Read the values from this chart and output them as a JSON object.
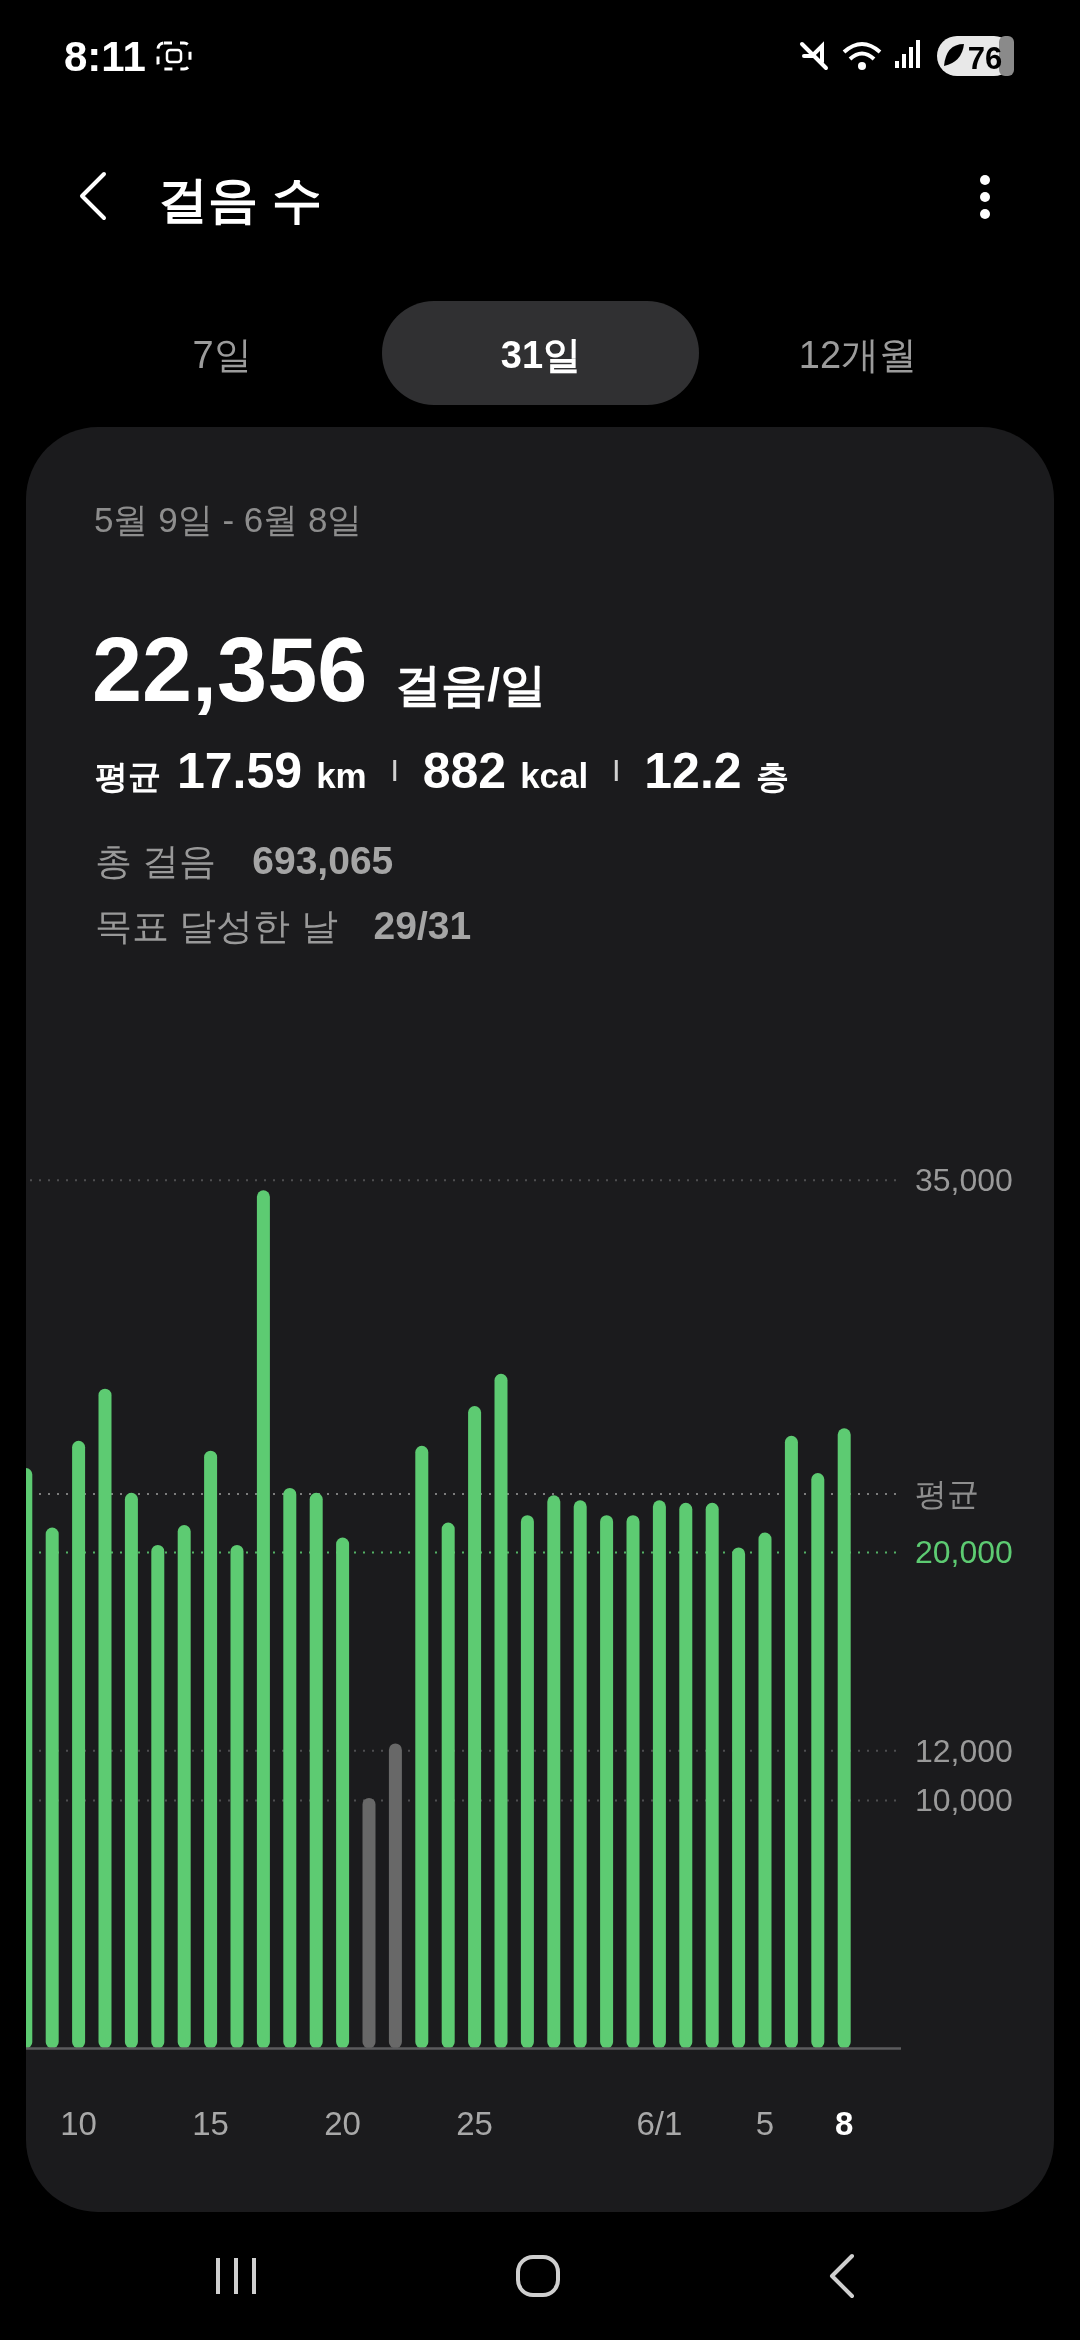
{
  "chart_data": {
    "type": "bar",
    "title": "걸음 수",
    "categories": [
      null,
      null,
      "10",
      null,
      null,
      null,
      null,
      "15",
      null,
      null,
      null,
      null,
      "20",
      null,
      null,
      null,
      null,
      "25",
      null,
      null,
      null,
      null,
      null,
      null,
      "6/1",
      null,
      null,
      null,
      "5",
      null,
      null,
      "8"
    ],
    "values": [
      23400,
      21000,
      24500,
      26600,
      22400,
      20300,
      21100,
      24100,
      20300,
      34600,
      22600,
      22400,
      20600,
      10100,
      12300,
      24300,
      21200,
      25900,
      27200,
      21500,
      22300,
      22100,
      21500,
      21500,
      22100,
      22000,
      22000,
      20200,
      20800,
      24700,
      23200,
      25000
    ],
    "colors": [
      "#5dcb72",
      "#5dcb72",
      "#5dcb72",
      "#5dcb72",
      "#5dcb72",
      "#5dcb72",
      "#5dcb72",
      "#5dcb72",
      "#5dcb72",
      "#5dcb72",
      "#5dcb72",
      "#5dcb72",
      "#5dcb72",
      "#686868",
      "#686868",
      "#5dcb72",
      "#5dcb72",
      "#5dcb72",
      "#5dcb72",
      "#5dcb72",
      "#5dcb72",
      "#5dcb72",
      "#5dcb72",
      "#5dcb72",
      "#5dcb72",
      "#5dcb72",
      "#5dcb72",
      "#5dcb72",
      "#5dcb72",
      "#5dcb72",
      "#5dcb72",
      "#5dcb72"
    ],
    "ylim": [
      0,
      35000
    ],
    "yticks": [
      {
        "value": 10000,
        "label": "10,000"
      },
      {
        "value": 12000,
        "label": "12,000"
      },
      {
        "value": 35000,
        "label": "35,000"
      }
    ],
    "grid": "y",
    "ref_lines": [
      {
        "axis": "y",
        "value": 20000,
        "label": "20,000",
        "color": "#5dcb72",
        "line_style": "dotted"
      },
      {
        "axis": "y",
        "value": 22356,
        "label": "평균",
        "color": "#8e8e8e",
        "line_style": "dotted"
      }
    ],
    "annotations": [
      "8:11",
      "76",
      "7일",
      "31일",
      "12개월",
      "5월 9일 - 6월 8일",
      "22,356",
      "걸음/일",
      "평균",
      "17.59",
      "km",
      "882",
      "kcal",
      "12.2",
      "층",
      "총 걸음",
      "693,065",
      "목표 달성한 날",
      "29/31"
    ]
  }
}
